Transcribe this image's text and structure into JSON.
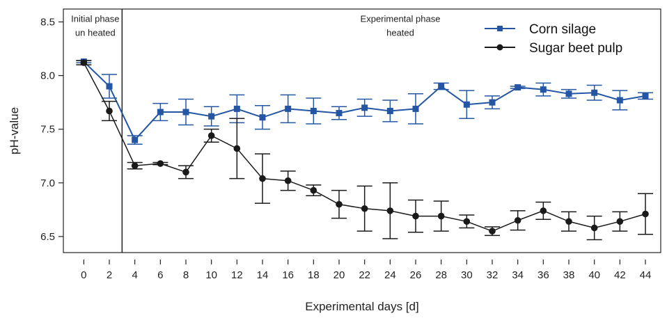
{
  "chart_data": {
    "type": "line",
    "xlabel": "Experimental days [d]",
    "ylabel": "pH-value",
    "x_ticks": [
      0,
      2,
      4,
      6,
      8,
      10,
      12,
      14,
      16,
      18,
      20,
      22,
      24,
      26,
      28,
      30,
      32,
      34,
      36,
      38,
      40,
      42,
      44
    ],
    "y_ticks": [
      6.5,
      7.0,
      7.5,
      8.0,
      8.5
    ],
    "ylim": [
      6.35,
      8.62
    ],
    "xlim": [
      -1.6,
      45.2
    ],
    "phase_divider_x": 3,
    "annotations": [
      {
        "lines": [
          "Initial phase",
          "un heated"
        ],
        "x": 0.9,
        "y": [
          8.5,
          8.37
        ]
      },
      {
        "lines": [
          "Experimental phase",
          "heated"
        ],
        "x": 24.8,
        "y": [
          8.5,
          8.37
        ]
      }
    ],
    "legend": {
      "position": "top-right"
    },
    "series": [
      {
        "name": "Corn silage",
        "color": "#2456a4",
        "marker": "square",
        "x": [
          0,
          2,
          4,
          6,
          8,
          10,
          12,
          14,
          16,
          18,
          20,
          22,
          24,
          26,
          28,
          30,
          32,
          34,
          36,
          38,
          40,
          42,
          44
        ],
        "y": [
          8.13,
          7.9,
          7.4,
          7.66,
          7.66,
          7.62,
          7.69,
          7.61,
          7.69,
          7.67,
          7.65,
          7.7,
          7.67,
          7.69,
          7.9,
          7.73,
          7.75,
          7.89,
          7.87,
          7.83,
          7.84,
          7.77,
          7.81
        ],
        "err": [
          0.01,
          0.11,
          0.04,
          0.08,
          0.12,
          0.09,
          0.13,
          0.11,
          0.13,
          0.12,
          0.06,
          0.08,
          0.1,
          0.14,
          0.03,
          0.13,
          0.06,
          0.01,
          0.06,
          0.04,
          0.07,
          0.09,
          0.03
        ]
      },
      {
        "name": "Sugar beet pulp",
        "color": "#1a1a1a",
        "marker": "circle",
        "x": [
          0,
          2,
          4,
          6,
          8,
          10,
          12,
          14,
          16,
          18,
          20,
          22,
          24,
          26,
          28,
          30,
          32,
          34,
          36,
          38,
          40,
          42,
          44
        ],
        "y": [
          8.12,
          7.67,
          7.16,
          7.18,
          7.1,
          7.44,
          7.32,
          7.04,
          7.02,
          6.93,
          6.8,
          6.76,
          6.74,
          6.69,
          6.69,
          6.64,
          6.55,
          6.65,
          6.74,
          6.64,
          6.58,
          6.64,
          6.71
        ],
        "err": [
          0.02,
          0.09,
          0.03,
          0.01,
          0.06,
          0.06,
          0.28,
          0.23,
          0.09,
          0.05,
          0.13,
          0.21,
          0.26,
          0.15,
          0.14,
          0.06,
          0.04,
          0.09,
          0.08,
          0.09,
          0.11,
          0.09,
          0.19
        ]
      }
    ]
  }
}
